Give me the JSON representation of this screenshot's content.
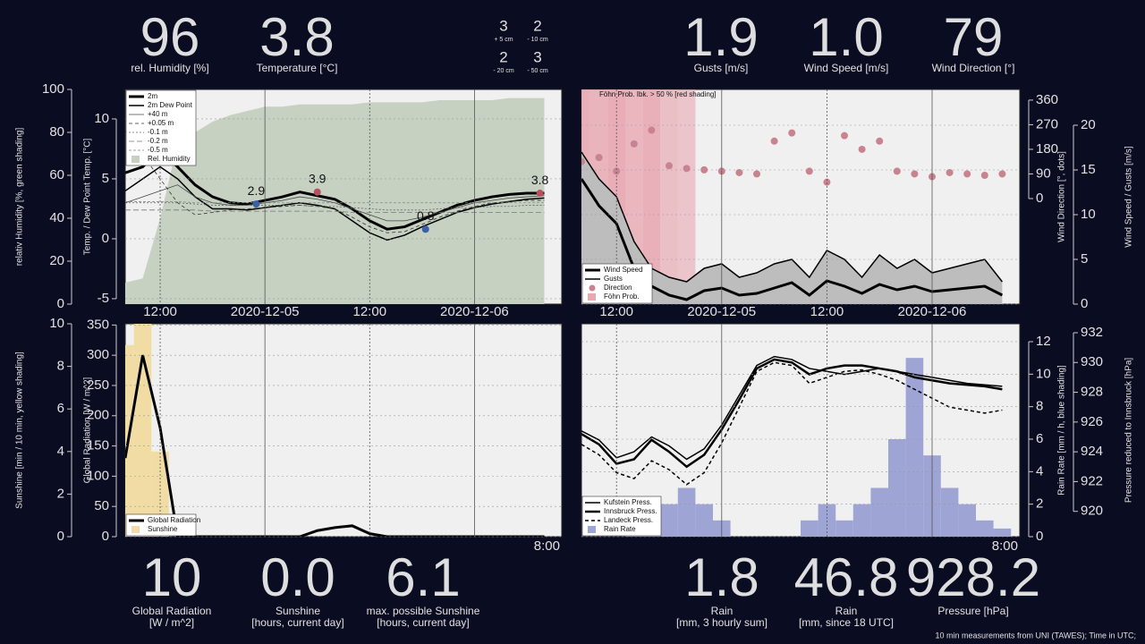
{
  "top_metrics": [
    {
      "value": "96",
      "label": [
        "rel. Humidity [%]"
      ]
    },
    {
      "value": "3.8",
      "label": [
        "Temperature [°C]"
      ]
    },
    {
      "value": "1.9",
      "label": [
        "Gusts [m/s]"
      ]
    },
    {
      "value": "1.0",
      "label": [
        "Wind Speed [m/s]"
      ]
    },
    {
      "value": "79",
      "label": [
        "Wind Direction [°]"
      ]
    }
  ],
  "soil": [
    {
      "value": "3",
      "label": "+ 5 cm"
    },
    {
      "value": "2",
      "label": "- 10 cm"
    },
    {
      "value": "2",
      "label": "- 20 cm"
    },
    {
      "value": "3",
      "label": "- 50 cm"
    }
  ],
  "bottom_metrics": [
    {
      "value": "10",
      "label": [
        "Global Radiation",
        "[W / m^2]"
      ]
    },
    {
      "value": "0.0",
      "label": [
        "Sunshine",
        "[hours, current day]"
      ]
    },
    {
      "value": "6.1",
      "label": [
        "max. possible Sunshine",
        "[hours, current day]"
      ]
    },
    {
      "value": "1.8",
      "label": [
        "Rain",
        "[mm, 3 hourly sum]"
      ]
    },
    {
      "value": "46.8",
      "label": [
        "Rain",
        "[mm, since 18 UTC]"
      ]
    },
    {
      "value": "928.2",
      "label": [
        "Pressure [hPa]"
      ]
    }
  ],
  "footer": "10 min measurements from UNI (TAWES); Time in UTC;",
  "chart_data": [
    {
      "type": "line",
      "xlim": [
        8,
        58
      ],
      "x": [
        8,
        10,
        12,
        14,
        16,
        18,
        20,
        22,
        24,
        26,
        28,
        30,
        32,
        34,
        36,
        38,
        40,
        42,
        44,
        46,
        48,
        50,
        52,
        54,
        56
      ],
      "xticks": [
        {
          "value": 12,
          "label": "12:00"
        },
        {
          "value": 24,
          "label": "2020-12-05"
        },
        {
          "value": 36,
          "label": "12:00"
        },
        {
          "value": 48,
          "label": "2020-12-06"
        }
      ],
      "ylim": [
        -5.45,
        12.46
      ],
      "yticks": [
        -5,
        0,
        5,
        10
      ],
      "ylabel": "Temp. / Dew Point Temp. [°C]",
      "y2lim": [
        0,
        100
      ],
      "y2ticks": [
        0,
        20,
        40,
        60,
        80,
        100
      ],
      "y2label": "relativ Humidity [%, green shading]",
      "legend": "upper left",
      "series": [
        {
          "name": "2m",
          "kind": "line",
          "color": "#000000",
          "width": 3,
          "values": [
            5.5,
            6,
            7.5,
            6,
            4.5,
            3.5,
            3.0,
            2.9,
            3.2,
            3.5,
            3.9,
            3.6,
            3.3,
            2.5,
            1.5,
            0.8,
            1.0,
            1.6,
            2.2,
            2.8,
            3.2,
            3.5,
            3.7,
            3.8,
            3.8
          ]
        },
        {
          "name": "2m Dew Point",
          "kind": "line",
          "color": "#000000",
          "width": 1.5,
          "values": [
            4,
            5,
            6,
            5,
            3.5,
            2.5,
            2.5,
            2.4,
            2.6,
            2.8,
            3.0,
            2.8,
            2.5,
            1.5,
            0.5,
            -0.1,
            0.3,
            1.0,
            1.6,
            2.2,
            2.6,
            2.9,
            3.1,
            3.3,
            3.4
          ]
        },
        {
          "name": "+40 m",
          "kind": "line",
          "color": "#444444",
          "width": 0.8,
          "values": [
            3,
            3.5,
            4,
            4.5,
            3.5,
            3,
            2.8,
            2.8,
            3,
            3.2,
            3.5,
            3.3,
            3,
            2.5,
            2,
            1.5,
            1.5,
            1.8,
            2.2,
            2.6,
            3,
            3.2,
            3.4,
            3.5,
            3.6
          ]
        },
        {
          "name": "+0.05 m",
          "kind": "line",
          "color": "#333333",
          "width": 0.8,
          "dash": "4,3",
          "values": [
            9,
            7,
            5,
            3,
            2,
            2.2,
            2.4,
            2.5,
            2.6,
            2.7,
            2.8,
            2.7,
            2.5,
            1.8,
            1.0,
            0.5,
            0.6,
            1.2,
            1.8,
            2.3,
            2.7,
            3.0,
            3.1,
            3.2,
            3.2
          ]
        },
        {
          "name": "-0.1 m",
          "kind": "line",
          "color": "#666666",
          "width": 0.8,
          "dash": "2,2",
          "values": [
            3,
            3,
            3,
            3,
            2.9,
            2.8,
            2.8,
            2.8,
            2.8,
            2.8,
            2.8,
            2.7,
            2.7,
            2.6,
            2.5,
            2.4,
            2.4,
            2.4,
            2.5,
            2.6,
            2.6,
            2.7,
            2.7,
            2.8,
            2.8
          ]
        },
        {
          "name": "-0.2 m",
          "kind": "line",
          "color": "#777777",
          "width": 0.8,
          "dash": "6,3",
          "values": [
            2.4,
            2.4,
            2.4,
            2.4,
            2.4,
            2.3,
            2.3,
            2.3,
            2.3,
            2.3,
            2.3,
            2.3,
            2.3,
            2.2,
            2.2,
            2.2,
            2.2,
            2.2,
            2.2,
            2.2,
            2.2,
            2.2,
            2.2,
            2.2,
            2.2
          ]
        },
        {
          "name": "-0.5 m",
          "kind": "line",
          "color": "#888888",
          "width": 0.8,
          "dash": "3,2",
          "values": [
            3.1,
            3.1,
            3.1,
            3.1,
            3.0,
            3.0,
            3.0,
            3.0,
            3.0,
            3.0,
            3.0,
            3.0,
            3.0,
            3.0,
            3.0,
            3.0,
            3.0,
            3.0,
            3.0,
            3.0,
            3.0,
            3.0,
            3.0,
            3.0,
            3.0
          ]
        },
        {
          "name": "Rel. Humidity",
          "kind": "area",
          "color": "#c6d1c2",
          "axis": "y2",
          "values": [
            10,
            12,
            40,
            75,
            80,
            85,
            88,
            90,
            92,
            92,
            93,
            93,
            93,
            93,
            94,
            94,
            94,
            94,
            95,
            95,
            95,
            95,
            96,
            96,
            96
          ]
        }
      ],
      "annotations": [
        {
          "x": 23,
          "value": 2.9,
          "color": "#3b5fa8"
        },
        {
          "x": 30,
          "value": 3.9,
          "color": "#b8505e"
        },
        {
          "x": 42.4,
          "value": 0.8,
          "color": "#3b5fa8"
        },
        {
          "x": 55.5,
          "value": 3.8,
          "color": "#b8505e"
        }
      ]
    },
    {
      "type": "line",
      "xlim": [
        8,
        58
      ],
      "x": [
        8,
        10,
        12,
        14,
        16,
        18,
        20,
        22,
        24,
        26,
        28,
        30,
        32,
        34,
        36,
        38,
        40,
        42,
        44,
        46,
        48,
        50,
        52,
        54,
        56
      ],
      "xticks": [
        {
          "value": 12,
          "label": "12:00"
        },
        {
          "value": 24,
          "label": "2020-12-05"
        },
        {
          "value": 36,
          "label": "12:00"
        },
        {
          "value": 48,
          "label": "2020-12-06"
        }
      ],
      "ylim": [
        0,
        24
      ],
      "yticks": [
        0,
        5,
        10,
        15,
        20
      ],
      "ylabel": "Wind Speed / Gusts [m/s]",
      "y2lim": [
        -386,
        399
      ],
      "y2ticks": [
        0,
        90,
        180,
        270,
        360
      ],
      "y2label": "Wind Direction [°, dots]",
      "legend": "lower left",
      "note": "Föhn Prob. Ibk. > 50 % [red shading]",
      "series": [
        {
          "name": "Wind Speed",
          "kind": "line",
          "color": "#000000",
          "width": 3,
          "values": [
            14,
            11,
            9,
            4,
            2,
            1,
            0.5,
            1.5,
            1.8,
            1.0,
            1.2,
            1.8,
            2.4,
            1.0,
            2.6,
            2,
            1.2,
            2.2,
            1.6,
            2.0,
            1.4,
            1.6,
            1.8,
            2.0,
            1.0
          ]
        },
        {
          "name": "Gusts",
          "kind": "arealine",
          "color": "#000000",
          "fill": "#bdbdbd",
          "width": 1.5,
          "values": [
            17,
            14,
            12,
            7,
            4,
            3,
            2.5,
            4,
            4.5,
            3,
            3.5,
            4.5,
            5,
            3,
            6,
            5,
            3,
            5.5,
            4,
            5,
            3.5,
            4,
            4.5,
            5,
            2.5
          ]
        },
        {
          "name": "Direction",
          "kind": "scatter",
          "color": "#c9828f",
          "axis": "y2",
          "values": [
            135,
            150,
            100,
            200,
            250,
            120,
            110,
            105,
            100,
            95,
            90,
            210,
            240,
            100,
            60,
            230,
            180,
            210,
            100,
            90,
            80,
            95,
            90,
            85,
            90
          ]
        },
        {
          "name": "Föhn Prob.",
          "kind": "shade",
          "color": "#e8a9b3",
          "values": [
            90,
            85,
            95,
            80,
            90,
            70,
            60,
            0,
            0,
            0,
            0,
            0,
            0,
            0,
            0,
            0,
            0,
            0,
            0,
            0,
            0,
            0,
            0,
            0,
            0
          ]
        }
      ]
    },
    {
      "type": "line",
      "xlim": [
        8,
        58
      ],
      "x": [
        8,
        10,
        12,
        14,
        16,
        18,
        20,
        22,
        24,
        26,
        28,
        30,
        32,
        34,
        36,
        38,
        40,
        42,
        44,
        46,
        48,
        50,
        52,
        54,
        56
      ],
      "xgrid": [
        12,
        24,
        36,
        48
      ],
      "xnote": "8:00",
      "ylim": [
        0,
        352
      ],
      "yticks": [
        0,
        50,
        100,
        150,
        200,
        250,
        300,
        350
      ],
      "ylabel": "Global Radiation [W / m^2]",
      "y2lim": [
        0,
        10
      ],
      "y2ticks": [
        0,
        2,
        4,
        6,
        8,
        10
      ],
      "y2label": "Sunshine [min / 10 min, yellow shading]",
      "legend": "lower left",
      "series": [
        {
          "name": "Global Radiation",
          "kind": "line",
          "color": "#000000",
          "width": 3,
          "values": [
            130,
            300,
            180,
            0,
            0,
            0,
            0,
            0,
            0,
            0,
            0,
            10,
            15,
            18,
            5,
            0,
            0,
            0,
            0,
            0,
            0,
            0,
            0,
            0,
            0
          ]
        },
        {
          "name": "Sunshine",
          "kind": "bar",
          "color": "#f1dca3",
          "axis": "y2",
          "values": [
            9,
            10,
            4,
            0,
            0,
            0,
            0,
            0,
            0,
            0,
            0,
            0,
            0,
            0,
            0,
            0,
            0,
            0,
            0,
            0,
            0,
            0,
            0,
            0,
            0
          ]
        }
      ]
    },
    {
      "type": "line",
      "xlim": [
        8,
        58
      ],
      "x": [
        8,
        10,
        12,
        14,
        16,
        18,
        20,
        22,
        24,
        26,
        28,
        30,
        32,
        34,
        36,
        38,
        40,
        42,
        44,
        46,
        48,
        50,
        52,
        54,
        56
      ],
      "xgrid": [
        12,
        24,
        36,
        48
      ],
      "xnote": "8:00",
      "ylim": [
        0,
        13.1
      ],
      "yticks": [
        0,
        2,
        4,
        6,
        8,
        10,
        12
      ],
      "ylabel": "Rain Rate [mm / h, blue shading]",
      "y2lim": [
        918.3,
        932.6
      ],
      "y2ticks": [
        920,
        922,
        924,
        926,
        928,
        930,
        932
      ],
      "y2label": "Pressure reduced to Innsbruck [hPa]",
      "legend": "lower left",
      "series": [
        {
          "name": "Kufstein Press.",
          "kind": "line",
          "color": "#000000",
          "width": 1.5,
          "axis": "y2",
          "values": [
            925.4,
            924.8,
            923.6,
            924.0,
            925.0,
            924.4,
            923.5,
            924.2,
            925.8,
            927.8,
            929.8,
            930.4,
            930.2,
            929.6,
            929.4,
            929.2,
            929.4,
            929.6,
            929.4,
            929.2,
            929.0,
            928.8,
            928.6,
            928.5,
            928.4
          ]
        },
        {
          "name": "Innsbruck Press.",
          "kind": "line",
          "color": "#000000",
          "width": 2.5,
          "axis": "y2",
          "values": [
            925.2,
            924.5,
            923.2,
            923.5,
            924.8,
            924.0,
            923.0,
            923.8,
            925.5,
            927.5,
            929.6,
            930.2,
            930.0,
            929.2,
            929.6,
            929.8,
            929.8,
            929.6,
            929.4,
            929.0,
            928.8,
            928.6,
            928.5,
            928.4,
            928.2
          ]
        },
        {
          "name": "Landeck Press.",
          "kind": "line",
          "color": "#000000",
          "width": 1.5,
          "dash": "4,3",
          "axis": "y2",
          "values": [
            924.5,
            923.8,
            922.6,
            922.2,
            923.4,
            922.8,
            921.8,
            922.6,
            924.6,
            927.0,
            929.4,
            930.0,
            929.8,
            928.6,
            929.0,
            929.4,
            929.5,
            929.2,
            928.8,
            928.2,
            927.6,
            927.0,
            926.8,
            926.6,
            926.8
          ]
        },
        {
          "name": "Rain Rate",
          "kind": "bar",
          "color": "#9ea4d4",
          "values": [
            0,
            0,
            0,
            1,
            2,
            2,
            3,
            2,
            1,
            0,
            0,
            0,
            0,
            1,
            2,
            1,
            2,
            3,
            6,
            11,
            5,
            3,
            2,
            1,
            0.5
          ]
        }
      ]
    }
  ]
}
